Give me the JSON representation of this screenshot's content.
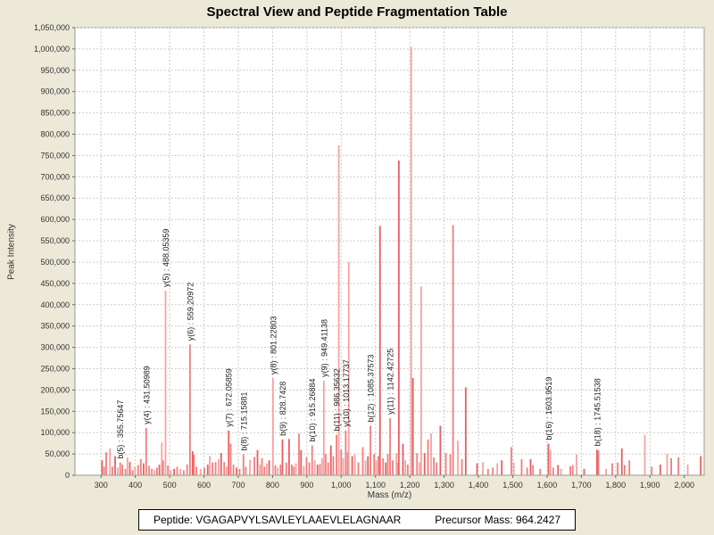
{
  "info": {
    "peptide_label": "Peptide:",
    "peptide": "VGAGAPVYLSAVLEYLAAEVLELAGNAAR",
    "precursor_label": "Precursor Mass:",
    "precursor_mass": "964.2427"
  },
  "colors": {
    "background": "#ece9d8",
    "plot_background": "#ffffff",
    "plot_border": "#9a9a9a",
    "grid": "#cccccc",
    "tick": "#666666",
    "tick_text": "#333333",
    "peak_mid": "#f27d7d",
    "peak_light": "#f6a2a2",
    "peak_dark": "#e85e5e",
    "label_text": "#222222"
  },
  "chart_data": {
    "type": "bar",
    "title": "Spectral View and Peptide Fragmentation Table",
    "xlabel": "Mass (m/z)",
    "ylabel": "Peak Intensity",
    "xlim": [
      224,
      2058
    ],
    "ylim": [
      0,
      1050000
    ],
    "grid": true,
    "x_ticks": [
      300,
      400,
      500,
      600,
      700,
      800,
      900,
      1000,
      1100,
      1200,
      1300,
      1400,
      1500,
      1600,
      1700,
      1800,
      1900,
      2000
    ],
    "y_ticks": [
      0,
      50000,
      100000,
      150000,
      200000,
      250000,
      300000,
      350000,
      400000,
      450000,
      500000,
      550000,
      600000,
      650000,
      700000,
      750000,
      800000,
      850000,
      900000,
      950000,
      1000000,
      1050000
    ],
    "labeled_peaks": [
      {
        "label": "b(5) : 355.75647",
        "mz": 355.75647,
        "intensity": 30000,
        "shade": 0
      },
      {
        "label": "y(4) : 431.50989",
        "mz": 431.50989,
        "intensity": 111000,
        "shade": 0
      },
      {
        "label": "y(5) : 488.05359",
        "mz": 488.05359,
        "intensity": 433000,
        "shade": 1
      },
      {
        "label": "y(6) : 559.20972",
        "mz": 559.20972,
        "intensity": 307000,
        "shade": 0
      },
      {
        "label": "y(7) : 672.05859",
        "mz": 672.05859,
        "intensity": 105000,
        "shade": 2
      },
      {
        "label": "b(8) : 715.15881",
        "mz": 715.15881,
        "intensity": 49000,
        "shade": 0
      },
      {
        "label": "y(8) : 801.22803",
        "mz": 801.22803,
        "intensity": 228000,
        "shade": 1
      },
      {
        "label": "b(9) : 828.7428",
        "mz": 828.7428,
        "intensity": 84000,
        "shade": 2
      },
      {
        "label": "b(10) : 915.26884",
        "mz": 915.26884,
        "intensity": 70000,
        "shade": 0
      },
      {
        "label": "y(9) : 949.41138",
        "mz": 949.41138,
        "intensity": 222000,
        "shade": 1
      },
      {
        "label": "b(11) : 986.35632",
        "mz": 986.35632,
        "intensity": 95000,
        "shade": 0
      },
      {
        "label": "y(10) : 1013.17737",
        "mz": 1013.17737,
        "intensity": 105000,
        "shade": 0
      },
      {
        "label": "b(12) : 1085.37573",
        "mz": 1085.37573,
        "intensity": 116000,
        "shade": 0
      },
      {
        "label": "y(11) : 1142.42725",
        "mz": 1142.42725,
        "intensity": 134000,
        "shade": 0
      },
      {
        "label": "b(16) : 1603.9519",
        "mz": 1603.9519,
        "intensity": 74000,
        "shade": 2
      },
      {
        "label": "b(18) : 1745.51538",
        "mz": 1745.51538,
        "intensity": 60000,
        "shade": 2
      }
    ],
    "major_peaks": [
      [
        993,
        774000,
        1
      ],
      [
        1022,
        500000,
        1
      ],
      [
        1113,
        585000,
        2
      ],
      [
        1168,
        738000,
        2
      ],
      [
        1204,
        1005000,
        1
      ],
      [
        1209,
        228000,
        2
      ],
      [
        1233,
        443000,
        1
      ],
      [
        1326,
        587000,
        0
      ],
      [
        1363,
        206000,
        2
      ]
    ],
    "peaks": [
      [
        303,
        35000
      ],
      [
        309,
        20000
      ],
      [
        315,
        54000
      ],
      [
        326,
        63000
      ],
      [
        333,
        20000
      ],
      [
        341,
        45000
      ],
      [
        349,
        18000
      ],
      [
        362,
        25000
      ],
      [
        371,
        15000
      ],
      [
        377,
        42000
      ],
      [
        384,
        31000
      ],
      [
        392,
        12000
      ],
      [
        399,
        20000
      ],
      [
        408,
        24000
      ],
      [
        416,
        38000
      ],
      [
        424,
        28000
      ],
      [
        440,
        22000
      ],
      [
        448,
        15000
      ],
      [
        456,
        12000
      ],
      [
        463,
        18000
      ],
      [
        470,
        25000
      ],
      [
        477,
        77000
      ],
      [
        481,
        35000
      ],
      [
        495,
        23000
      ],
      [
        503,
        12000
      ],
      [
        513,
        15000
      ],
      [
        522,
        20000
      ],
      [
        531,
        15000
      ],
      [
        541,
        12000
      ],
      [
        551,
        25000
      ],
      [
        567,
        56000
      ],
      [
        571,
        48000
      ],
      [
        578,
        20000
      ],
      [
        590,
        15000
      ],
      [
        601,
        18000
      ],
      [
        611,
        25000
      ],
      [
        617,
        45000
      ],
      [
        625,
        30000
      ],
      [
        634,
        31000
      ],
      [
        643,
        38000
      ],
      [
        650,
        52000
      ],
      [
        659,
        31000
      ],
      [
        666,
        20000
      ],
      [
        678,
        74000
      ],
      [
        686,
        25000
      ],
      [
        695,
        18000
      ],
      [
        704,
        15000
      ],
      [
        722,
        20000
      ],
      [
        734,
        36000
      ],
      [
        747,
        43000
      ],
      [
        756,
        59000
      ],
      [
        763,
        25000
      ],
      [
        769,
        40000
      ],
      [
        776,
        20000
      ],
      [
        783,
        28000
      ],
      [
        790,
        35000
      ],
      [
        808,
        23000
      ],
      [
        815,
        18000
      ],
      [
        823,
        25000
      ],
      [
        840,
        30000
      ],
      [
        848,
        85000
      ],
      [
        856,
        25000
      ],
      [
        862,
        20000
      ],
      [
        868,
        28000
      ],
      [
        877,
        98000
      ],
      [
        883,
        59000
      ],
      [
        891,
        22000
      ],
      [
        899,
        42000
      ],
      [
        907,
        30000
      ],
      [
        923,
        35000
      ],
      [
        931,
        25000
      ],
      [
        938,
        26000
      ],
      [
        944,
        40000
      ],
      [
        955,
        50000
      ],
      [
        962,
        30000
      ],
      [
        970,
        70000
      ],
      [
        977,
        45000
      ],
      [
        1000,
        60000
      ],
      [
        1006,
        40000
      ],
      [
        1019,
        55000
      ],
      [
        1032,
        45000
      ],
      [
        1040,
        49000
      ],
      [
        1050,
        30000
      ],
      [
        1063,
        66000
      ],
      [
        1071,
        35000
      ],
      [
        1078,
        45000
      ],
      [
        1096,
        50000
      ],
      [
        1102,
        35000
      ],
      [
        1108,
        45000
      ],
      [
        1122,
        40000
      ],
      [
        1130,
        30000
      ],
      [
        1136,
        50000
      ],
      [
        1150,
        35000
      ],
      [
        1161,
        52000
      ],
      [
        1166,
        30000
      ],
      [
        1180,
        74000
      ],
      [
        1187,
        35000
      ],
      [
        1194,
        25000
      ],
      [
        1221,
        52000
      ],
      [
        1228,
        30000
      ],
      [
        1243,
        52000
      ],
      [
        1253,
        84000
      ],
      [
        1262,
        98000
      ],
      [
        1270,
        42000
      ],
      [
        1278,
        30000
      ],
      [
        1289,
        116000
      ],
      [
        1305,
        52000
      ],
      [
        1318,
        49000
      ],
      [
        1340,
        81000
      ],
      [
        1352,
        38000
      ],
      [
        1396,
        28000
      ],
      [
        1413,
        31000
      ],
      [
        1428,
        15000
      ],
      [
        1442,
        18000
      ],
      [
        1455,
        28000
      ],
      [
        1468,
        35000
      ],
      [
        1496,
        66000
      ],
      [
        1503,
        30000
      ],
      [
        1526,
        38000
      ],
      [
        1542,
        18000
      ],
      [
        1552,
        38000
      ],
      [
        1559,
        24000
      ],
      [
        1580,
        15000
      ],
      [
        1610,
        59000
      ],
      [
        1618,
        18000
      ],
      [
        1632,
        24000
      ],
      [
        1641,
        15000
      ],
      [
        1668,
        21000
      ],
      [
        1675,
        24000
      ],
      [
        1686,
        49000
      ],
      [
        1708,
        15000
      ],
      [
        1750,
        58000
      ],
      [
        1772,
        15000
      ],
      [
        1790,
        28000
      ],
      [
        1806,
        30000
      ],
      [
        1818,
        63000
      ],
      [
        1826,
        24000
      ],
      [
        1840,
        35000
      ],
      [
        1885,
        95000
      ],
      [
        1905,
        20000
      ],
      [
        1930,
        25000
      ],
      [
        1950,
        50000
      ],
      [
        1962,
        40000
      ],
      [
        1983,
        42000
      ],
      [
        2010,
        25000
      ],
      [
        2048,
        45000
      ]
    ]
  }
}
